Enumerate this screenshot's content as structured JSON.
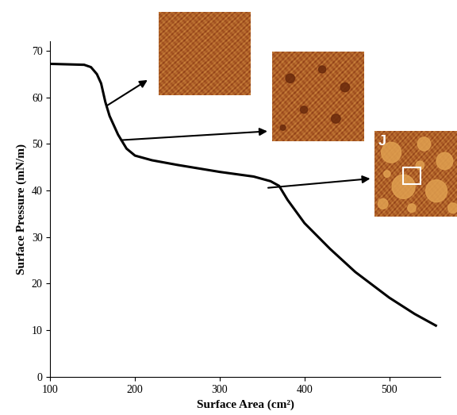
{
  "chart_data": {
    "type": "line",
    "xlabel": "Surface Area (cm²)",
    "ylabel": "Surface Pressure (mN/m)",
    "x": [
      100,
      140,
      148,
      155,
      160,
      165,
      170,
      180,
      190,
      200,
      220,
      250,
      300,
      340,
      360,
      370,
      380,
      400,
      430,
      460,
      500,
      530,
      555
    ],
    "values": [
      67.2,
      67.0,
      66.5,
      65.0,
      63.0,
      59.0,
      56.0,
      52.0,
      49.0,
      47.5,
      46.5,
      45.5,
      44.0,
      43.0,
      42.0,
      41.0,
      38.0,
      33.0,
      27.5,
      22.5,
      17.0,
      13.5,
      11.0
    ],
    "color": "#000000",
    "xlim": [
      100,
      560
    ],
    "ylim": [
      0,
      72
    ],
    "xticks": [
      100,
      200,
      300,
      400,
      500
    ],
    "yticks": [
      0,
      10,
      20,
      30,
      40,
      50,
      60,
      70
    ],
    "grid": false,
    "annotations": [
      "J"
    ]
  }
}
